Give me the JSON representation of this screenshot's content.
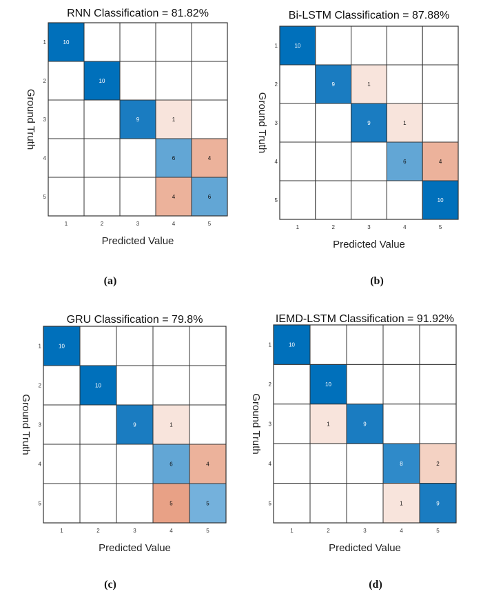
{
  "chart_data": [
    {
      "type": "heatmap",
      "panel": "(a)",
      "title": "RNN Classification =  81.82%",
      "xlabel": "Predicted Value",
      "ylabel": "Ground Truth",
      "x_ticks": [
        "1",
        "2",
        "3",
        "4",
        "5"
      ],
      "y_ticks": [
        "1",
        "2",
        "3",
        "4",
        "5"
      ],
      "matrix": [
        [
          10,
          0,
          0,
          0,
          0
        ],
        [
          0,
          10,
          0,
          0,
          0
        ],
        [
          0,
          0,
          9,
          1,
          0
        ],
        [
          0,
          0,
          0,
          6,
          4
        ],
        [
          0,
          0,
          0,
          4,
          6
        ]
      ]
    },
    {
      "type": "heatmap",
      "panel": "(b)",
      "title": "Bi-LSTM Classification =  87.88%",
      "xlabel": "Predicted Value",
      "ylabel": "Ground Truth",
      "x_ticks": [
        "1",
        "2",
        "3",
        "4",
        "5"
      ],
      "y_ticks": [
        "1",
        "2",
        "3",
        "4",
        "5"
      ],
      "matrix": [
        [
          10,
          0,
          0,
          0,
          0
        ],
        [
          0,
          9,
          1,
          0,
          0
        ],
        [
          0,
          0,
          9,
          1,
          0
        ],
        [
          0,
          0,
          0,
          6,
          4
        ],
        [
          0,
          0,
          0,
          0,
          10
        ]
      ]
    },
    {
      "type": "heatmap",
      "panel": "(c)",
      "title": "GRU Classification =  79.8%",
      "xlabel": "Predicted Value",
      "ylabel": "Ground Truth",
      "x_ticks": [
        "1",
        "2",
        "3",
        "4",
        "5"
      ],
      "y_ticks": [
        "1",
        "2",
        "3",
        "4",
        "5"
      ],
      "matrix": [
        [
          10,
          0,
          0,
          0,
          0
        ],
        [
          0,
          10,
          0,
          0,
          0
        ],
        [
          0,
          0,
          9,
          1,
          0
        ],
        [
          0,
          0,
          0,
          6,
          4
        ],
        [
          0,
          0,
          0,
          5,
          5
        ]
      ]
    },
    {
      "type": "heatmap",
      "panel": "(d)",
      "title": "IEMD-LSTM Classification =  91.92%",
      "xlabel": "Predicted Value",
      "ylabel": "Ground Truth",
      "x_ticks": [
        "1",
        "2",
        "3",
        "4",
        "5"
      ],
      "y_ticks": [
        "1",
        "2",
        "3",
        "4",
        "5"
      ],
      "matrix": [
        [
          10,
          0,
          0,
          0,
          0
        ],
        [
          0,
          10,
          0,
          0,
          0
        ],
        [
          0,
          1,
          9,
          0,
          0
        ],
        [
          0,
          0,
          0,
          8,
          2
        ],
        [
          0,
          0,
          0,
          1,
          9
        ]
      ]
    }
  ],
  "colors": {
    "diag_strong": "#0070bb",
    "diag_9": "#1a7cc1",
    "diag_8": "#2f8ac9",
    "diag_6": "#62a6d5",
    "diag_5": "#74b1dc",
    "off_1": "#f8e4dc",
    "off_2": "#f4d2c3",
    "off_4": "#ecb29b",
    "off_5": "#e8a186",
    "grid": "#333333"
  }
}
